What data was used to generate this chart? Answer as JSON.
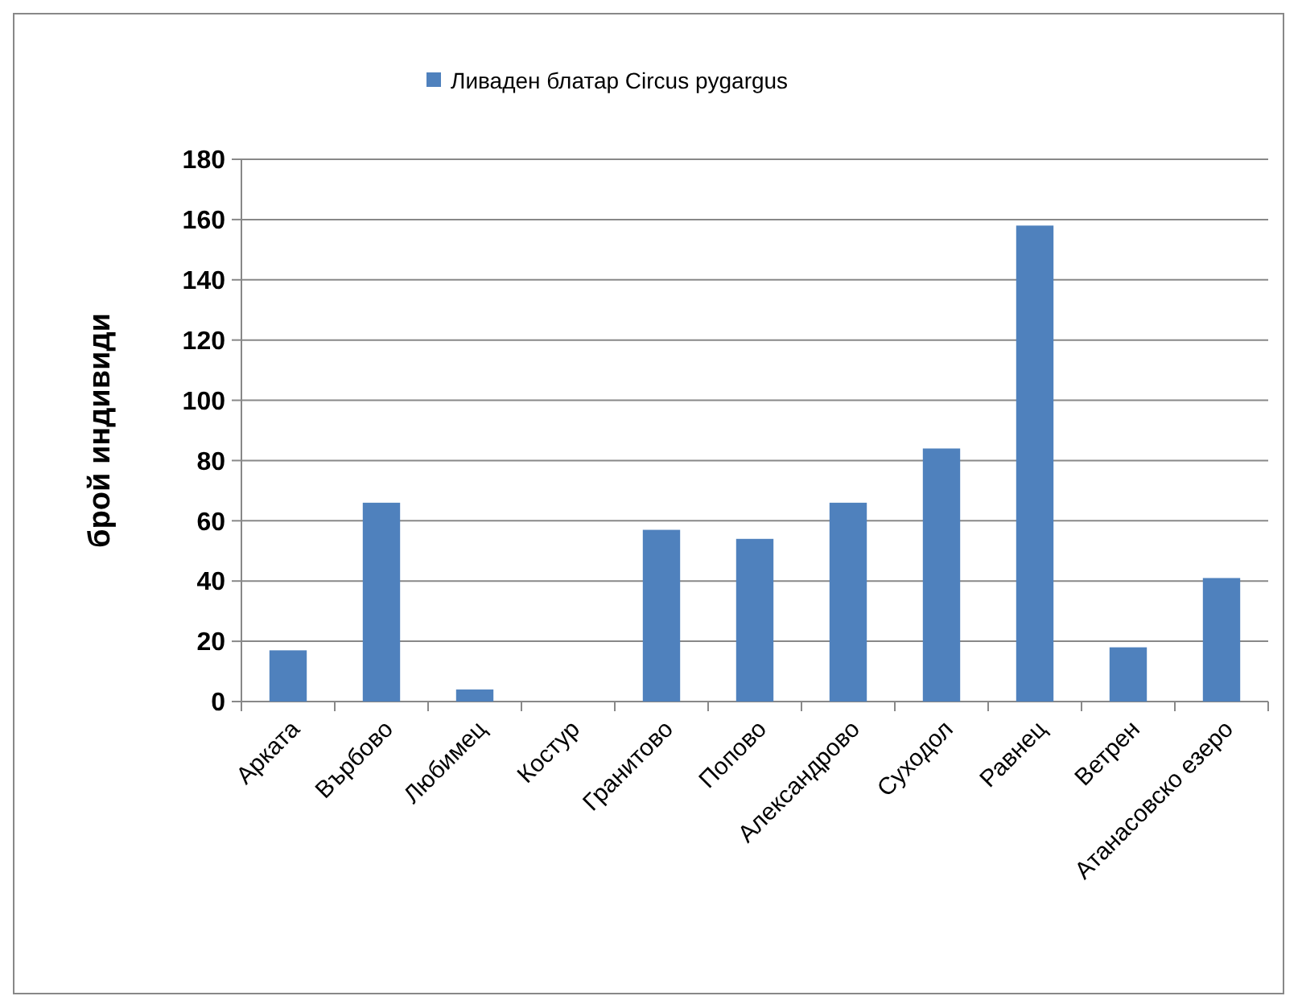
{
  "chart_data": {
    "type": "bar",
    "ylabel": "брой индивиди",
    "categories": [
      "Арката",
      "Върбово",
      "Любимец",
      "Костур",
      "Гранитово",
      "Попово",
      "Александрово",
      "Суходол",
      "Равнец",
      "Ветрен",
      "Атанасовско езеро"
    ],
    "series": [
      {
        "name": "Ливаден блатар Circus pygargus",
        "color": "#4f81bd",
        "values": [
          17,
          66,
          4,
          0,
          57,
          54,
          66,
          84,
          158,
          18,
          41
        ]
      }
    ],
    "ylim": [
      0,
      180
    ],
    "yticks": [
      0,
      20,
      40,
      60,
      80,
      100,
      120,
      140,
      160,
      180
    ],
    "grid": "y",
    "legend": "top"
  }
}
